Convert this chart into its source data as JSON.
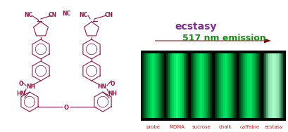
{
  "background_color": "#ffffff",
  "molecule_color": "#8B1A4A",
  "ecstasy_text": "ecstasy",
  "ecstasy_color": "#7B2D8B",
  "arrow_color": "#8B0000",
  "emission_text": "517 nm emission",
  "emission_color": "#1A8B1A",
  "labels": [
    "probe",
    "MDMA",
    "sucrose",
    "chalk",
    "caffeine",
    "ecstasy"
  ],
  "label_color": "#CC1A1A",
  "vial_base_colors": [
    "#00AA44",
    "#00CC55",
    "#00AA44",
    "#00AA44",
    "#00AA44",
    "#88DDAA"
  ],
  "vial_dark_colors": [
    "#003311",
    "#003311",
    "#003311",
    "#003311",
    "#003311",
    "#003311"
  ],
  "vial_bright_colors": [
    "#00EE66",
    "#11FF77",
    "#00EE66",
    "#00EE66",
    "#00EE66",
    "#AAFFCC"
  ],
  "photo_bg": "#020802"
}
